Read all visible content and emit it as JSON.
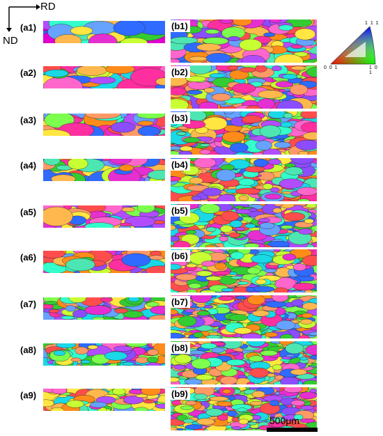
{
  "axes": {
    "rd_label": "RD",
    "nd_label": "ND"
  },
  "ipf_key": {
    "top_label": "1 1 1",
    "left_label": "0 0 1",
    "right_label": "1 0 1"
  },
  "scale_bar": {
    "label": "500μm"
  },
  "colors": {
    "ebsd_palette": [
      "#ff2fa0",
      "#ff8c1a",
      "#33cc33",
      "#2f6bff",
      "#b24dff",
      "#ffe640",
      "#1ad8e6",
      "#ff4d4d",
      "#7dff4d",
      "#e62fd0",
      "#4de6b2",
      "#ff9966",
      "#66a3ff",
      "#c8ff33",
      "#ff66cc",
      "#8c4dff",
      "#33ffcc",
      "#ffb84d"
    ]
  },
  "panels_a": [
    {
      "label": "(a1)",
      "grain_count": 16,
      "highlight": "#e000d0"
    },
    {
      "label": "(a2)",
      "grain_count": 26,
      "highlight": "#ff8c1a"
    },
    {
      "label": "(a3)",
      "grain_count": 30,
      "highlight": "#ff2fa0"
    },
    {
      "label": "(a4)",
      "grain_count": 34,
      "highlight": "#2f6bff"
    },
    {
      "label": "(a5)",
      "grain_count": 40,
      "highlight": "#b24dff"
    },
    {
      "label": "(a6)",
      "grain_count": 48,
      "highlight": "#ff8c1a"
    },
    {
      "label": "(a7)",
      "grain_count": 56,
      "highlight": "#33cc33"
    },
    {
      "label": "(a8)",
      "grain_count": 64,
      "highlight": "#1ad8e6"
    },
    {
      "label": "(a9)",
      "grain_count": 72,
      "highlight": "#ffe640"
    }
  ],
  "panels_b": [
    {
      "label": "(b1)",
      "grain_count": 110
    },
    {
      "label": "(b2)",
      "grain_count": 130
    },
    {
      "label": "(b3)",
      "grain_count": 150
    },
    {
      "label": "(b4)",
      "grain_count": 165
    },
    {
      "label": "(b5)",
      "grain_count": 180
    },
    {
      "label": "(b6)",
      "grain_count": 195
    },
    {
      "label": "(b7)",
      "grain_count": 210
    },
    {
      "label": "(b8)",
      "grain_count": 225
    },
    {
      "label": "(b9)",
      "grain_count": 240
    }
  ]
}
